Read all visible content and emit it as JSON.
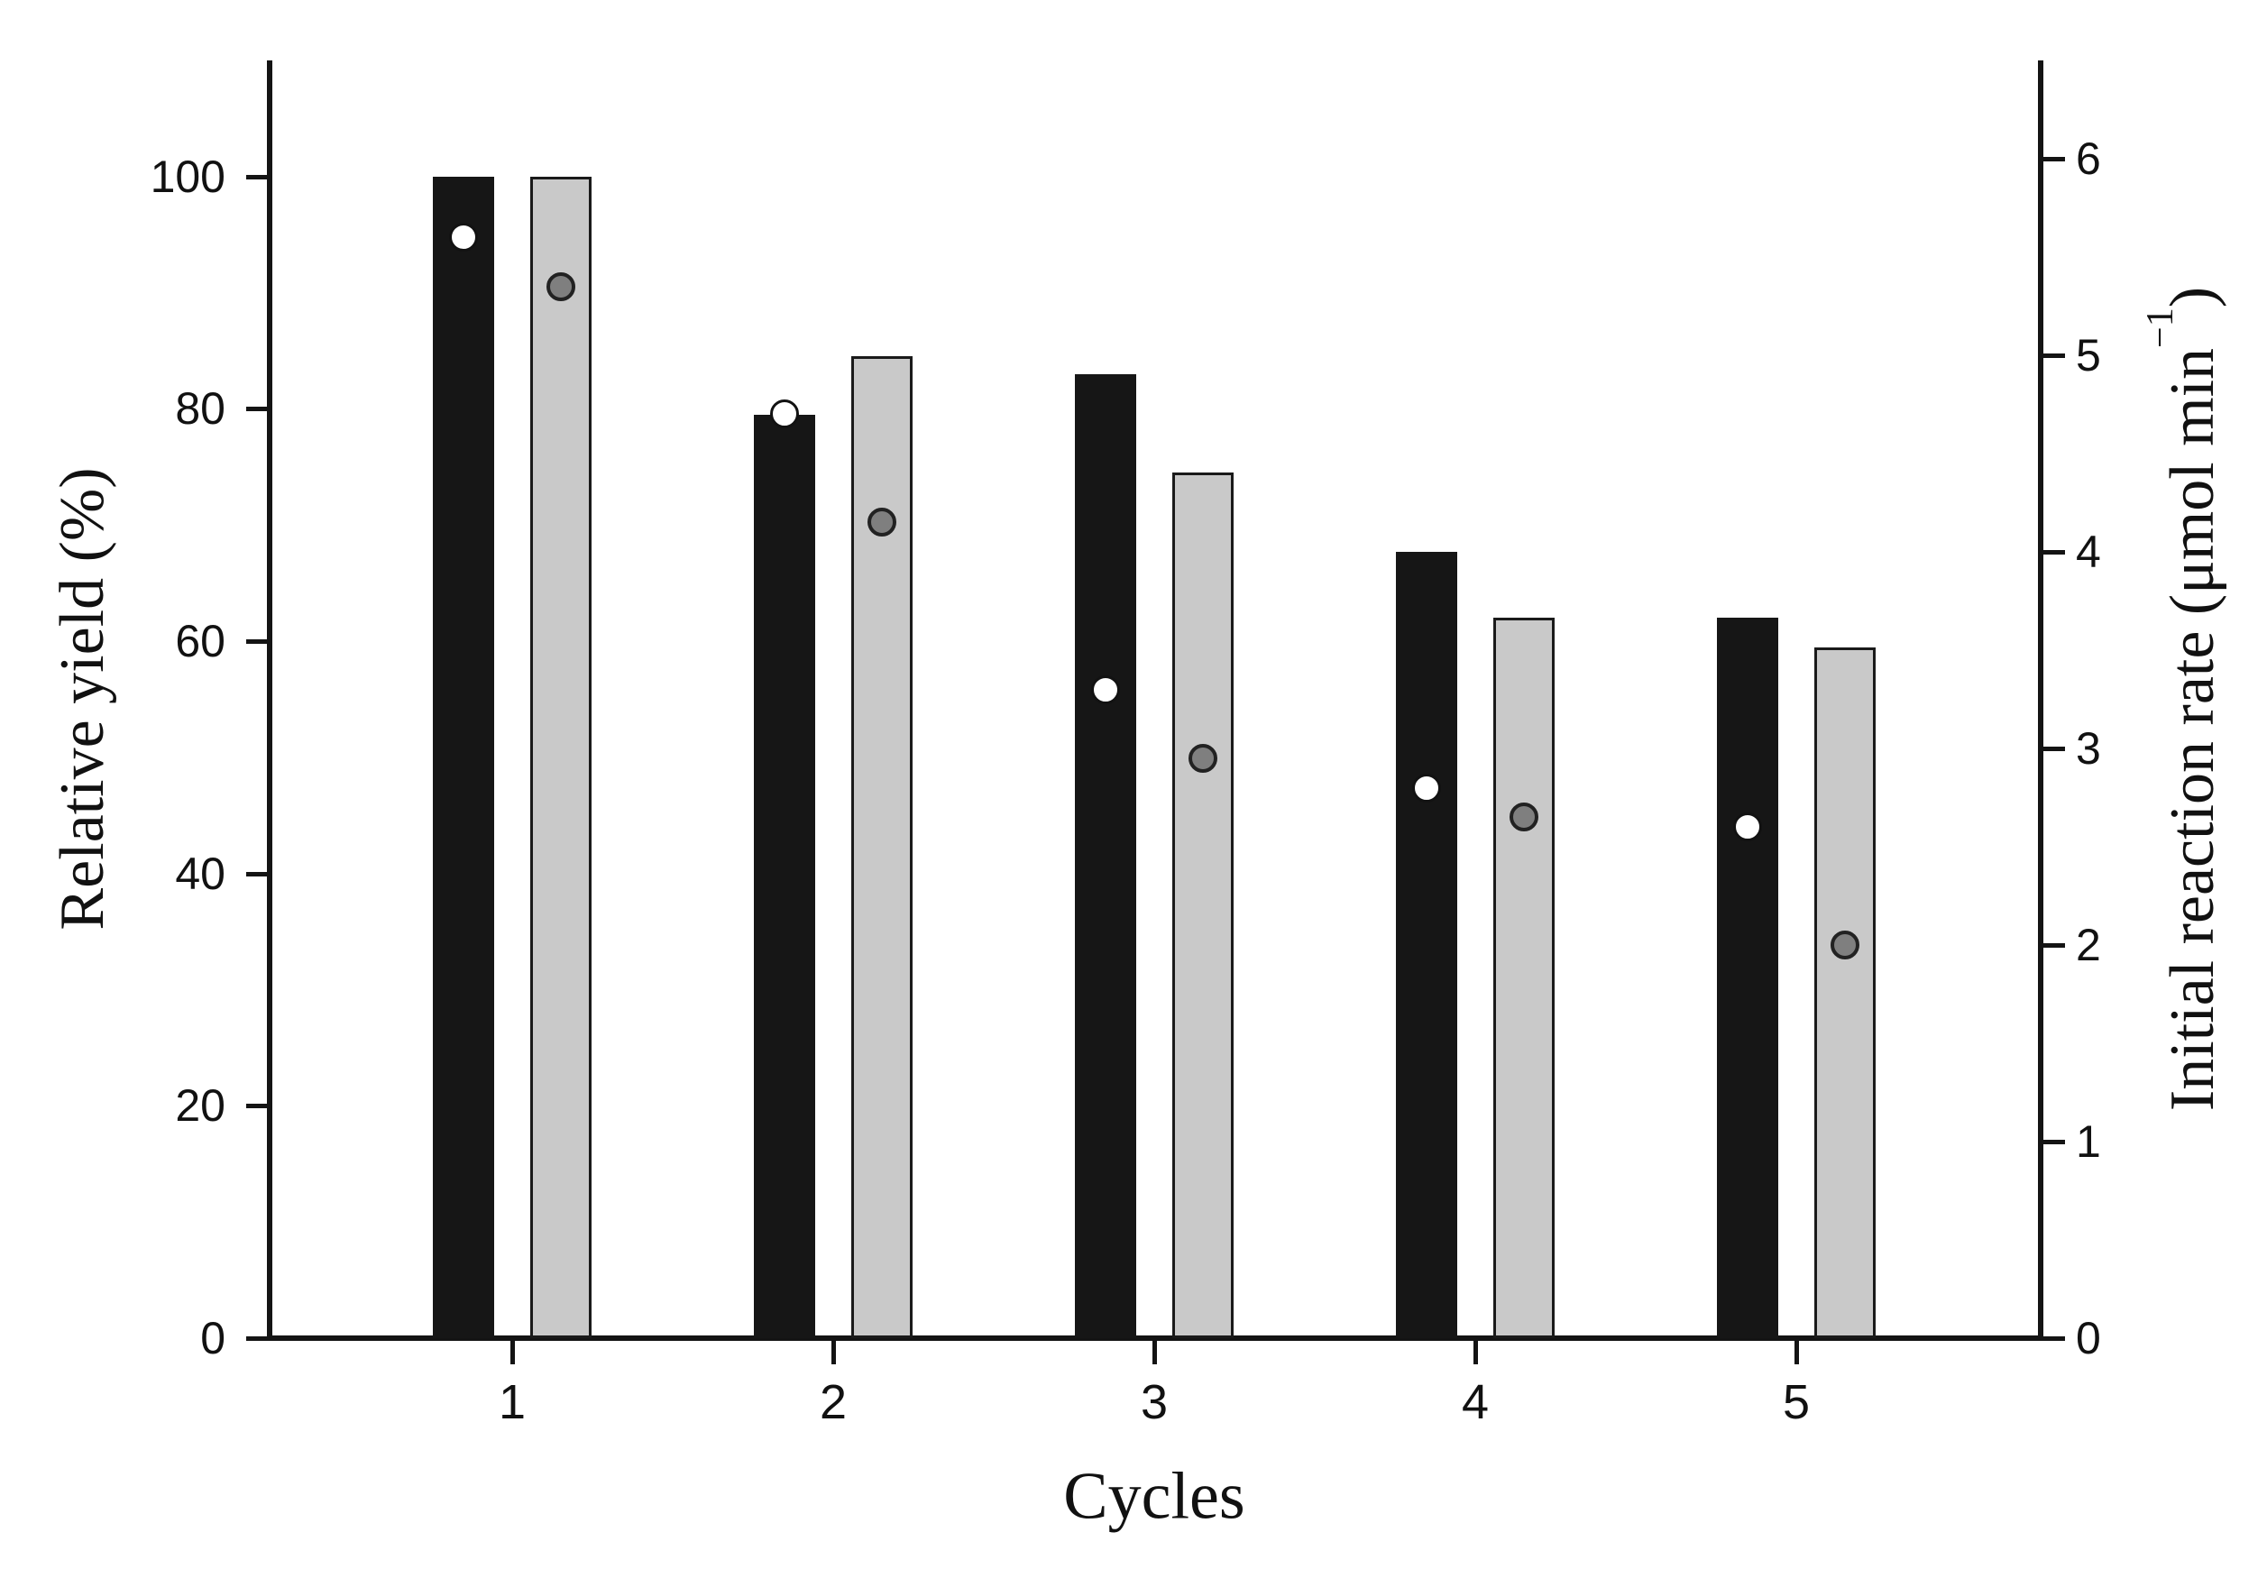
{
  "figure": {
    "background": "#ffffff",
    "bar_black_color": "#161616",
    "bar_gray_color": "#c9c9c9",
    "dot_white_color": "#ffffff",
    "dot_gray_color": "#7f7f7f",
    "axis_color": "#141414"
  },
  "axes": {
    "left": {
      "title": "Relative yield (%)",
      "tick_labels": [
        "0",
        "20",
        "40",
        "60",
        "80",
        "100"
      ],
      "tick_values": [
        0,
        20,
        40,
        60,
        80,
        100
      ],
      "range": [
        0,
        110
      ]
    },
    "right": {
      "title_pre": "Initial reaction rate (μmol min",
      "title_sup": "−1",
      "title_post": ")",
      "title_full": "Initial reaction rate (μmol min⁻¹)",
      "tick_labels": [
        "0",
        "1",
        "2",
        "3",
        "4",
        "5",
        "6"
      ],
      "tick_values": [
        0,
        1,
        2,
        3,
        4,
        5,
        6
      ],
      "range": [
        0,
        6.5
      ]
    },
    "x": {
      "title": "Cycles",
      "categories": [
        "1",
        "2",
        "3",
        "4",
        "5"
      ]
    }
  },
  "chart_data": {
    "type": "bar",
    "categories": [
      1,
      2,
      3,
      4,
      5
    ],
    "xlabel": "Cycles",
    "ylabel_left": "Relative yield (%)",
    "ylabel_right": "Initial reaction rate (μmol min⁻¹)",
    "ylim_left": [
      0,
      110
    ],
    "ylim_right": [
      0,
      6.5
    ],
    "grid": false,
    "legend": "none",
    "series": [
      {
        "name": "black-bar-relative-yield",
        "type": "bar",
        "axis": "left",
        "color": "#161616",
        "values": [
          100,
          79.5,
          83,
          67.7,
          62
        ]
      },
      {
        "name": "gray-bar-relative-yield",
        "type": "bar",
        "axis": "left",
        "color": "#c9c9c9",
        "values": [
          100,
          84.5,
          74.5,
          62,
          59.5
        ]
      },
      {
        "name": "white-circle-initial-rate",
        "type": "scatter",
        "axis": "right",
        "color": "#ffffff",
        "values": [
          5.6,
          4.7,
          3.3,
          2.8,
          2.6
        ]
      },
      {
        "name": "gray-circle-initial-rate",
        "type": "scatter",
        "axis": "right",
        "color": "#7f7f7f",
        "values": [
          5.35,
          4.15,
          2.95,
          2.65,
          2.0
        ]
      }
    ]
  }
}
